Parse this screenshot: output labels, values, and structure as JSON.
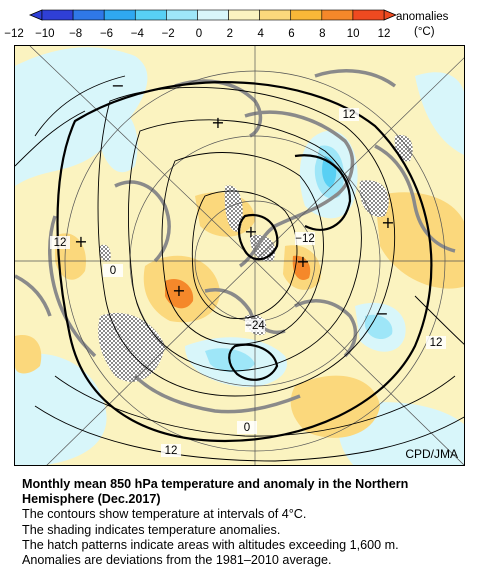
{
  "legend": {
    "title": "anomalies",
    "unit": "(°C)",
    "tick_labels": [
      "−12",
      "−10",
      "−8",
      "−6",
      "−4",
      "−2",
      "0",
      "2",
      "4",
      "6",
      "8",
      "10",
      "12"
    ],
    "colors": [
      "#2f3fd6",
      "#2f78e8",
      "#2fa8f0",
      "#58d0f4",
      "#9ee6f8",
      "#d8f6fa",
      "#fbf3c0",
      "#fbd87c",
      "#f8b838",
      "#f5882a",
      "#ee4a20"
    ]
  },
  "map": {
    "source_credit": "CPD/JMA",
    "contour_labels": [
      {
        "text": "12"
      },
      {
        "text": "12"
      },
      {
        "text": "12"
      },
      {
        "text": "12"
      },
      {
        "text": "0"
      },
      {
        "text": "0"
      },
      {
        "text": "−12"
      },
      {
        "text": "−24"
      }
    ],
    "anomaly_markers": [
      "+",
      "+",
      "+",
      "+",
      "+",
      "+",
      "−",
      "−"
    ],
    "colors": {
      "positive_weak": "#fbf3c0",
      "positive_mid": "#fbd87c",
      "positive_strong": "#f5882a",
      "negative_weak": "#d8f6fa",
      "negative_mid": "#9ee6f8",
      "negative_strong": "#58d0f4",
      "coast": "#8a8a8a",
      "contour": "#000000"
    }
  },
  "caption": {
    "title": "Monthly mean 850 hPa temperature and anomaly in the Northern Hemisphere (Dec.2017)",
    "lines": [
      "The contours show temperature at intervals of 4°C.",
      "The shading indicates temperature anomalies.",
      "The hatch patterns indicate areas with altitudes exceeding 1,600 m.",
      "Anomalies are deviations from the 1981–2010 average."
    ]
  }
}
